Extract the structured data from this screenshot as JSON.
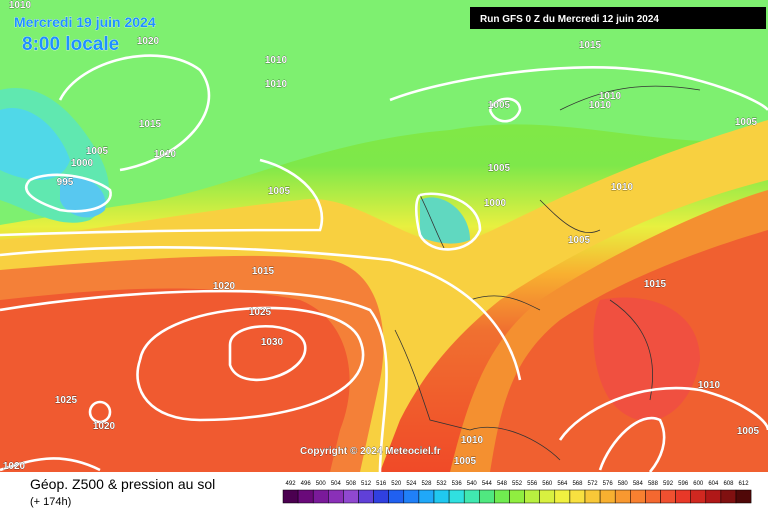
{
  "header": {
    "valid_date": "Mercredi 19 juin 2024",
    "local_time": "8:00 locale",
    "run": "Run GFS 0 Z du Mercredi 12 juin 2024"
  },
  "copyright": "Copyright © 2024 Meteociel.fr",
  "footer": {
    "title": "Géop. Z500 & pression au sol",
    "lead_time": "(+ 174h)"
  },
  "isobar_labels": [
    1010,
    1020,
    1010,
    1010,
    1015,
    1005,
    1010,
    1010,
    1005,
    1015,
    1010,
    1005,
    1000,
    995,
    1005,
    1005,
    1000,
    1010,
    1005,
    1015,
    1020,
    1025,
    1015,
    1030,
    1025,
    1020,
    1010,
    1005,
    1010,
    1005,
    1020
  ],
  "legend": {
    "labels": [
      492,
      496,
      500,
      504,
      508,
      512,
      516,
      520,
      524,
      528,
      532,
      536,
      540,
      544,
      548,
      552,
      556,
      560,
      564,
      568,
      572,
      576,
      580,
      584,
      588,
      592,
      596,
      600,
      604,
      608,
      612
    ]
  }
}
